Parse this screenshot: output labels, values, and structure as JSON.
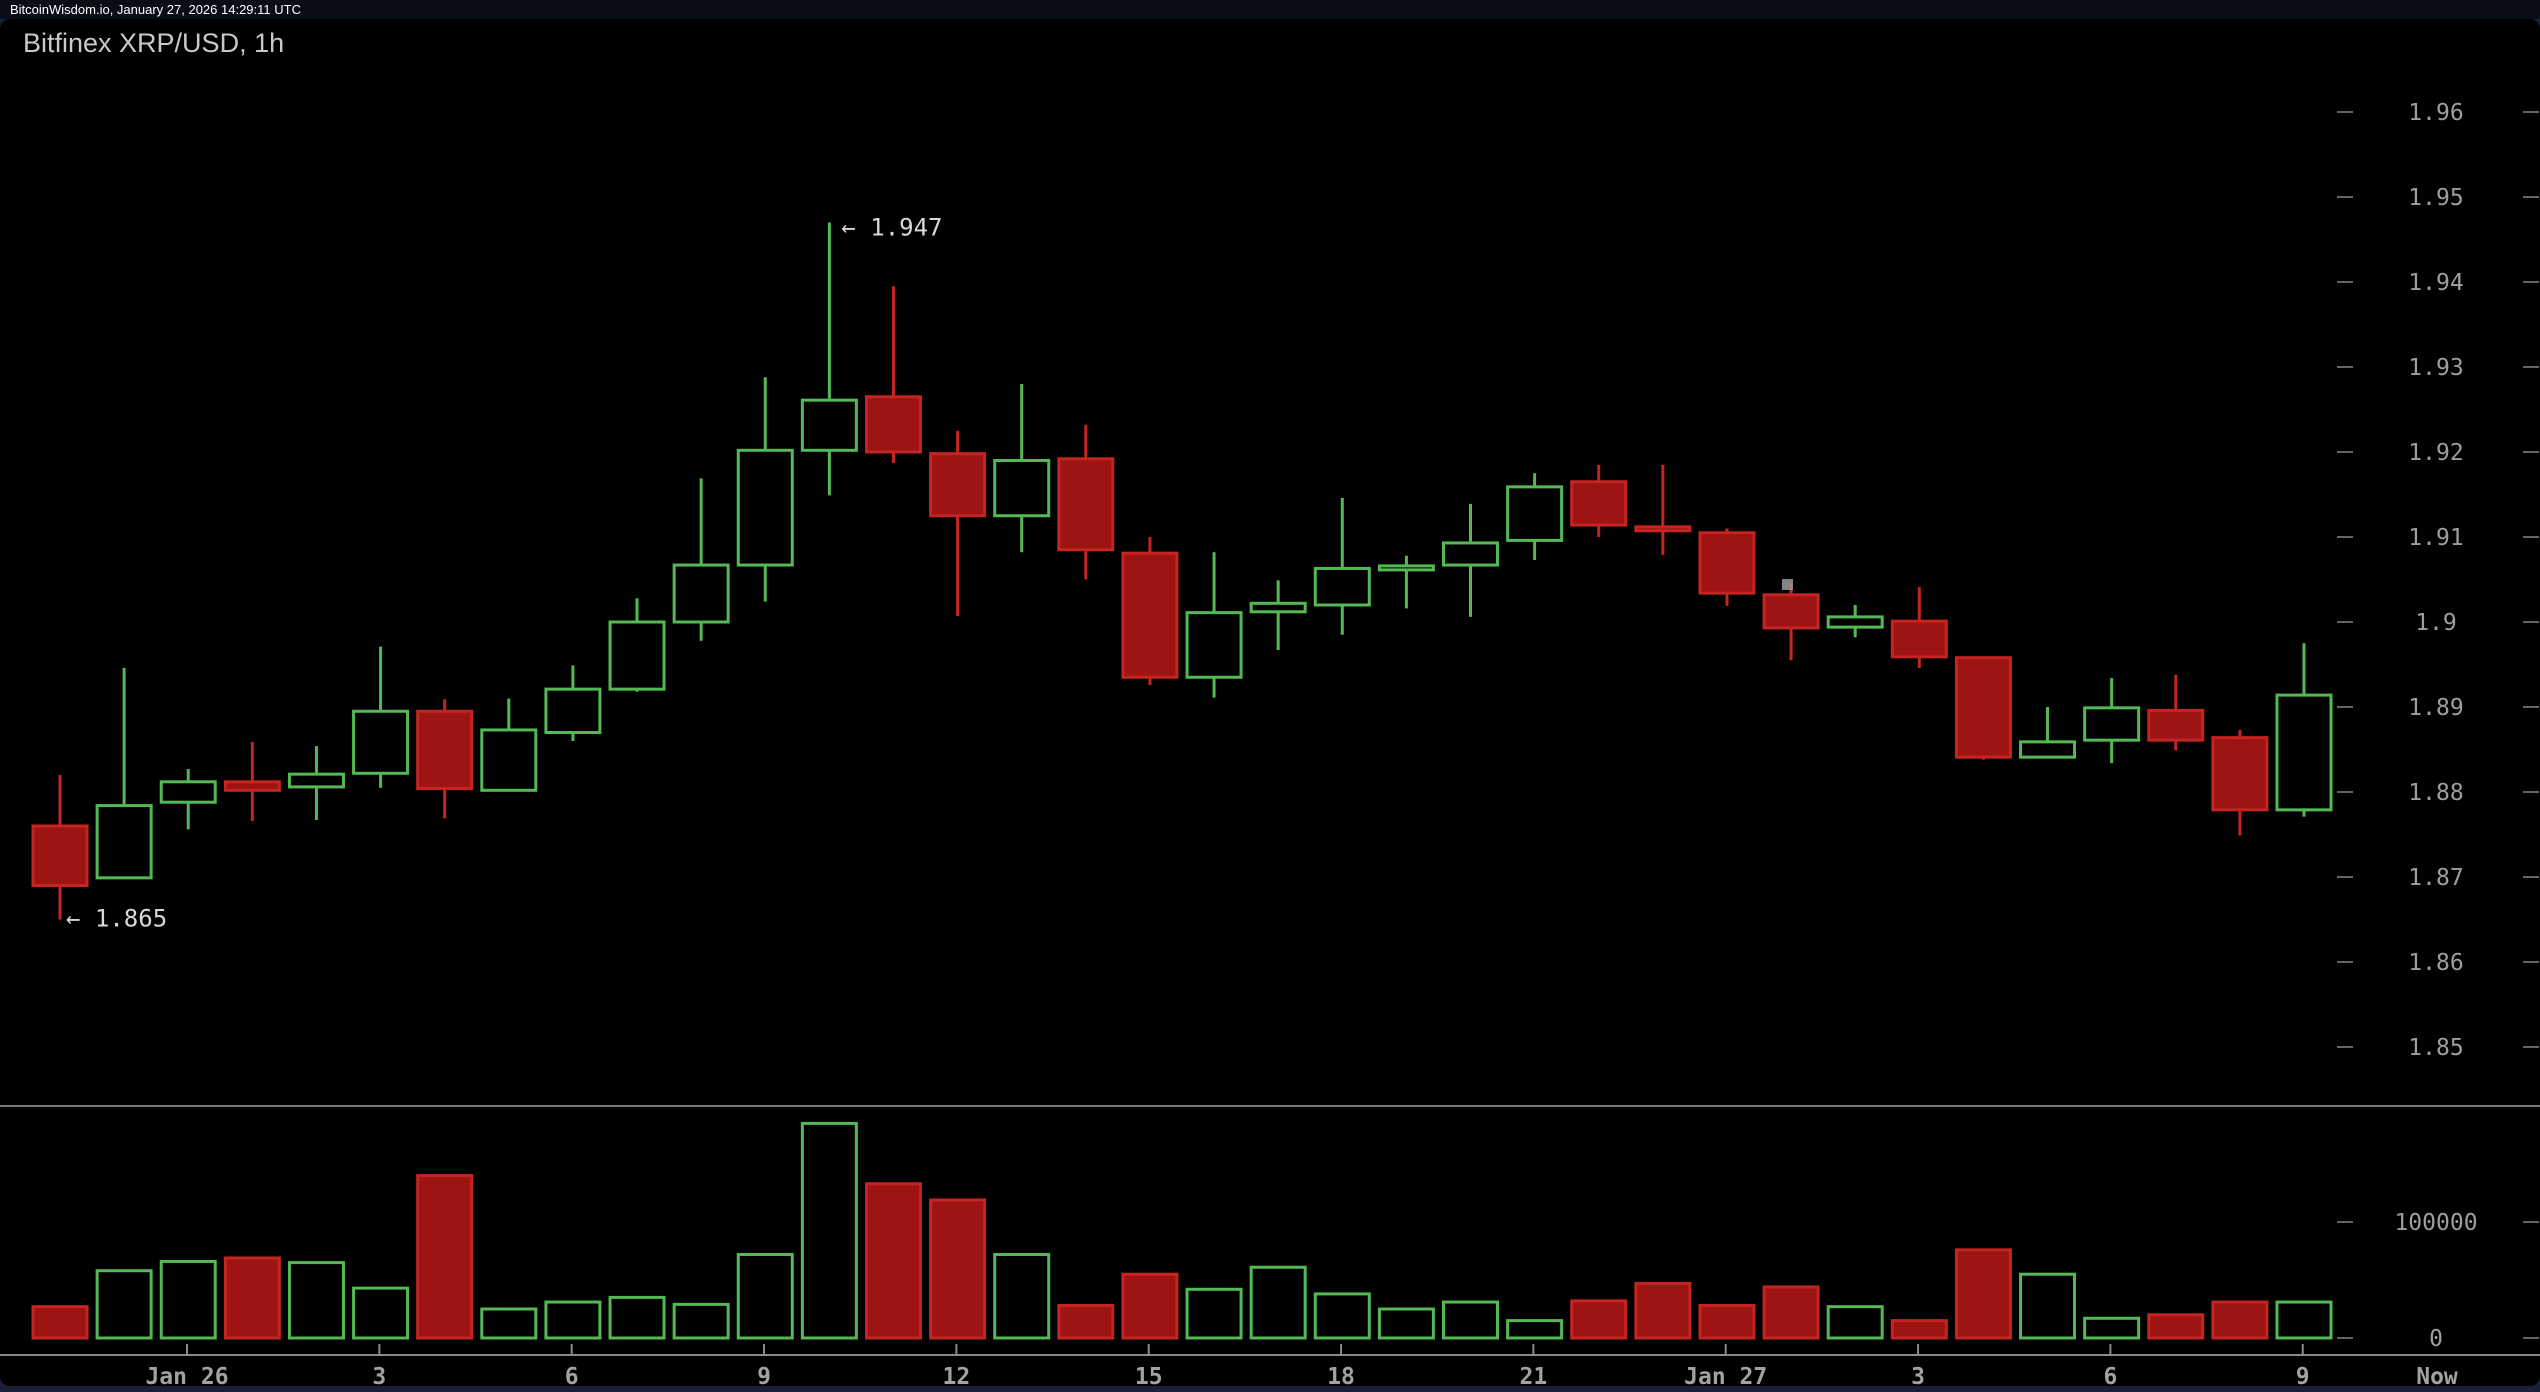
{
  "topbar": {
    "text": "BitcoinWisdom.io, January 27, 2026 14:29:11 UTC"
  },
  "chart_title": "Bitfinex XRP/USD, 1h",
  "chart_data": {
    "type": "candlestick",
    "exchange": "Bitfinex",
    "pair": "XRP/USD",
    "interval": "1h",
    "title": "Bitfinex XRP/USD, 1h",
    "grid": false,
    "price_axis": {
      "side": "right",
      "min": 1.85,
      "max": 1.96,
      "step": 0.01,
      "labels": [
        "1.96",
        "1.95",
        "1.94",
        "1.93",
        "1.92",
        "1.91",
        "1.9",
        "1.89",
        "1.88",
        "1.87",
        "1.86",
        "1.85"
      ]
    },
    "volume_axis": {
      "ticks": [
        {
          "label": "100000",
          "value": 100000
        },
        {
          "label": "0",
          "value": 0
        }
      ]
    },
    "time_axis": {
      "hours_per_tick": 3,
      "tick_labels": [
        "Jan 26",
        "3",
        "6",
        "9",
        "12",
        "15",
        "18",
        "21",
        "Jan 27",
        "3",
        "6",
        "9"
      ],
      "now_label": "Now"
    },
    "annotations": [
      {
        "text": "← 1.947",
        "price": 1.947,
        "candle_index": 12,
        "position": "high"
      },
      {
        "text": "← 1.865",
        "price": 1.865,
        "candle_index": 0,
        "position": "low"
      }
    ],
    "colors": {
      "up_stroke": "#54b954",
      "up_fill": "#000000",
      "down_stroke": "#c42522",
      "down_fill": "#9d1412",
      "background": "#000000",
      "axis_text": "#9e9e9e",
      "axis_line": "#8a8a8a"
    },
    "candles": [
      {
        "time": "Jan 25 22:00",
        "open": 1.876,
        "high": 1.882,
        "low": 1.865,
        "close": 1.869,
        "volume": 27000
      },
      {
        "time": "Jan 25 23:00",
        "open": 1.8699,
        "high": 1.8946,
        "low": 1.8699,
        "close": 1.8784,
        "volume": 58000
      },
      {
        "time": "Jan 26 00:00",
        "open": 1.8788,
        "high": 1.8827,
        "low": 1.8756,
        "close": 1.8812,
        "volume": 66000
      },
      {
        "time": "Jan 26 01:00",
        "open": 1.8812,
        "high": 1.8859,
        "low": 1.8766,
        "close": 1.8802,
        "volume": 69000
      },
      {
        "time": "Jan 26 02:00",
        "open": 1.8806,
        "high": 1.8854,
        "low": 1.8767,
        "close": 1.8821,
        "volume": 65000
      },
      {
        "time": "Jan 26 03:00",
        "open": 1.8822,
        "high": 1.8971,
        "low": 1.8805,
        "close": 1.8895,
        "volume": 43000
      },
      {
        "time": "Jan 26 04:00",
        "open": 1.8895,
        "high": 1.8909,
        "low": 1.8769,
        "close": 1.8804,
        "volume": 140000
      },
      {
        "time": "Jan 26 05:00",
        "open": 1.8802,
        "high": 1.891,
        "low": 1.8802,
        "close": 1.8873,
        "volume": 25000
      },
      {
        "time": "Jan 26 06:00",
        "open": 1.887,
        "high": 1.8949,
        "low": 1.886,
        "close": 1.8921,
        "volume": 31000
      },
      {
        "time": "Jan 26 07:00",
        "open": 1.8921,
        "high": 1.9028,
        "low": 1.8918,
        "close": 1.9,
        "volume": 35000
      },
      {
        "time": "Jan 26 08:00",
        "open": 1.9,
        "high": 1.9169,
        "low": 1.8978,
        "close": 1.9067,
        "volume": 29000
      },
      {
        "time": "Jan 26 09:00",
        "open": 1.9067,
        "high": 1.9288,
        "low": 1.9024,
        "close": 1.9202,
        "volume": 72000
      },
      {
        "time": "Jan 26 10:00",
        "open": 1.9202,
        "high": 1.947,
        "low": 1.9149,
        "close": 1.9261,
        "volume": 185000
      },
      {
        "time": "Jan 26 11:00",
        "open": 1.9265,
        "high": 1.9395,
        "low": 1.9187,
        "close": 1.92,
        "volume": 133000
      },
      {
        "time": "Jan 26 12:00",
        "open": 1.9198,
        "high": 1.9225,
        "low": 1.9007,
        "close": 1.9125,
        "volume": 119000
      },
      {
        "time": "Jan 26 13:00",
        "open": 1.9125,
        "high": 1.928,
        "low": 1.9082,
        "close": 1.919,
        "volume": 72000
      },
      {
        "time": "Jan 26 14:00",
        "open": 1.9192,
        "high": 1.9232,
        "low": 1.905,
        "close": 1.9085,
        "volume": 28000
      },
      {
        "time": "Jan 26 15:00",
        "open": 1.9081,
        "high": 1.91,
        "low": 1.8926,
        "close": 1.8935,
        "volume": 55000
      },
      {
        "time": "Jan 26 16:00",
        "open": 1.8935,
        "high": 1.9082,
        "low": 1.8911,
        "close": 1.9011,
        "volume": 42000
      },
      {
        "time": "Jan 26 17:00",
        "open": 1.9012,
        "high": 1.9049,
        "low": 1.8967,
        "close": 1.9022,
        "volume": 61000
      },
      {
        "time": "Jan 26 18:00",
        "open": 1.902,
        "high": 1.9146,
        "low": 1.8985,
        "close": 1.9063,
        "volume": 38000
      },
      {
        "time": "Jan 26 19:00",
        "open": 1.9062,
        "high": 1.9078,
        "low": 1.9016,
        "close": 1.9066,
        "volume": 25000
      },
      {
        "time": "Jan 26 20:00",
        "open": 1.9067,
        "high": 1.9139,
        "low": 1.9006,
        "close": 1.9093,
        "volume": 31000
      },
      {
        "time": "Jan 26 21:00",
        "open": 1.9096,
        "high": 1.9175,
        "low": 1.9073,
        "close": 1.9159,
        "volume": 15000
      },
      {
        "time": "Jan 26 22:00",
        "open": 1.9165,
        "high": 1.9185,
        "low": 1.91,
        "close": 1.9114,
        "volume": 32000
      },
      {
        "time": "Jan 26 23:00",
        "open": 1.9112,
        "high": 1.9185,
        "low": 1.9079,
        "close": 1.9109,
        "volume": 47000
      },
      {
        "time": "Jan 27 00:00",
        "open": 1.9105,
        "high": 1.911,
        "low": 1.9019,
        "close": 1.9034,
        "volume": 28000
      },
      {
        "time": "Jan 27 01:00",
        "open": 1.9032,
        "high": 1.9045,
        "low": 1.8955,
        "close": 1.8993,
        "volume": 44000
      },
      {
        "time": "Jan 27 02:00",
        "open": 1.8994,
        "high": 1.902,
        "low": 1.8982,
        "close": 1.9006,
        "volume": 27000
      },
      {
        "time": "Jan 27 03:00",
        "open": 1.9001,
        "high": 1.9041,
        "low": 1.8946,
        "close": 1.8959,
        "volume": 15000
      },
      {
        "time": "Jan 27 04:00",
        "open": 1.8958,
        "high": 1.8958,
        "low": 1.8838,
        "close": 1.8841,
        "volume": 76000
      },
      {
        "time": "Jan 27 05:00",
        "open": 1.8841,
        "high": 1.89,
        "low": 1.8841,
        "close": 1.8859,
        "volume": 55000
      },
      {
        "time": "Jan 27 06:00",
        "open": 1.8861,
        "high": 1.8934,
        "low": 1.8834,
        "close": 1.8899,
        "volume": 17000
      },
      {
        "time": "Jan 27 07:00",
        "open": 1.8896,
        "high": 1.8938,
        "low": 1.8849,
        "close": 1.8861,
        "volume": 20000
      },
      {
        "time": "Jan 27 08:00",
        "open": 1.8864,
        "high": 1.8873,
        "low": 1.8749,
        "close": 1.8779,
        "volume": 31000
      },
      {
        "time": "Jan 27 09:00",
        "open": 1.8779,
        "high": 1.8975,
        "low": 1.8771,
        "close": 1.8914,
        "volume": 31000
      }
    ]
  }
}
